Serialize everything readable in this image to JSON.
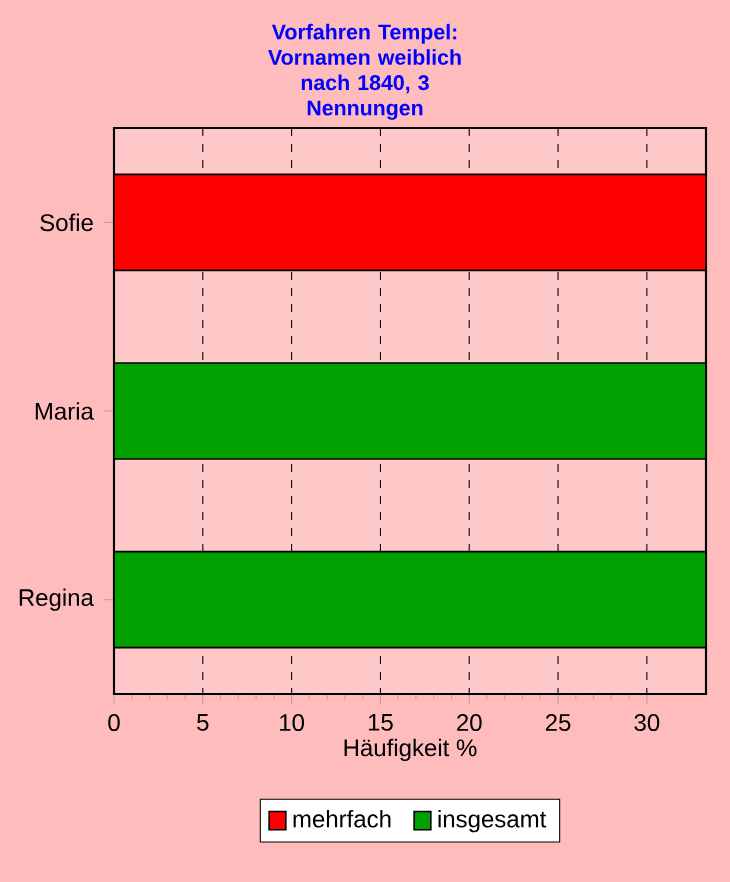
{
  "chart_data": {
    "type": "bar",
    "orientation": "horizontal",
    "title": "Vorfahren Tempel: Vornamen weiblich",
    "subtitle": "nach 1840, 3 Nennungen",
    "xlabel": "Häufigkeit %",
    "categories": [
      "Sofie",
      "Maria",
      "Regina"
    ],
    "series": [
      {
        "name": "mehrfach",
        "color": "#ff0000",
        "values": [
          33.33,
          null,
          null
        ]
      },
      {
        "name": "insgesamt",
        "color": "#00a000",
        "values": [
          null,
          33.33,
          33.33
        ]
      }
    ],
    "xlim": [
      0,
      33.33
    ],
    "xticks": [
      0,
      5,
      10,
      15,
      20,
      25,
      30
    ],
    "grid": "x",
    "legend": "bottom"
  }
}
